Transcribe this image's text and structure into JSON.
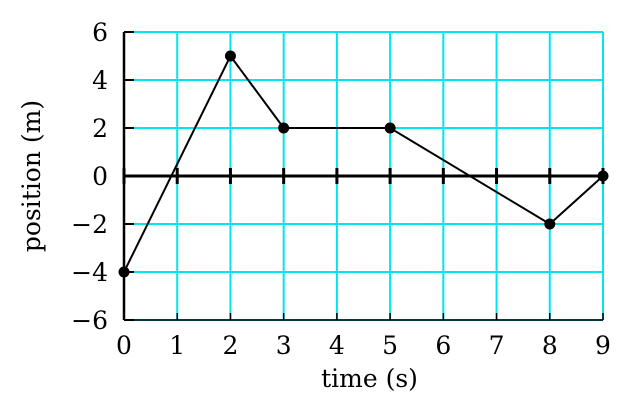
{
  "chart_data": {
    "type": "line",
    "xlabel": "time (s)",
    "ylabel": "position (m)",
    "xlim": [
      0,
      9
    ],
    "ylim": [
      -6,
      6
    ],
    "x_ticks": [
      0,
      1,
      2,
      3,
      4,
      5,
      6,
      7,
      8,
      9
    ],
    "y_ticks": [
      6,
      4,
      2,
      0,
      -2,
      -4,
      -6
    ],
    "x_tick_labels": [
      "0",
      "1",
      "2",
      "3",
      "4",
      "5",
      "6",
      "7",
      "8",
      "9"
    ],
    "y_tick_labels": [
      "6",
      "4",
      "2",
      "0",
      "−2",
      "−4",
      "−6"
    ],
    "grid": true,
    "grid_color": "#00e5ee",
    "line_color": "#000000",
    "series": [
      {
        "x": [
          0,
          2,
          3,
          5,
          8,
          9
        ],
        "y": [
          -4,
          5,
          2,
          2,
          -2,
          0
        ],
        "markers": true
      }
    ]
  }
}
